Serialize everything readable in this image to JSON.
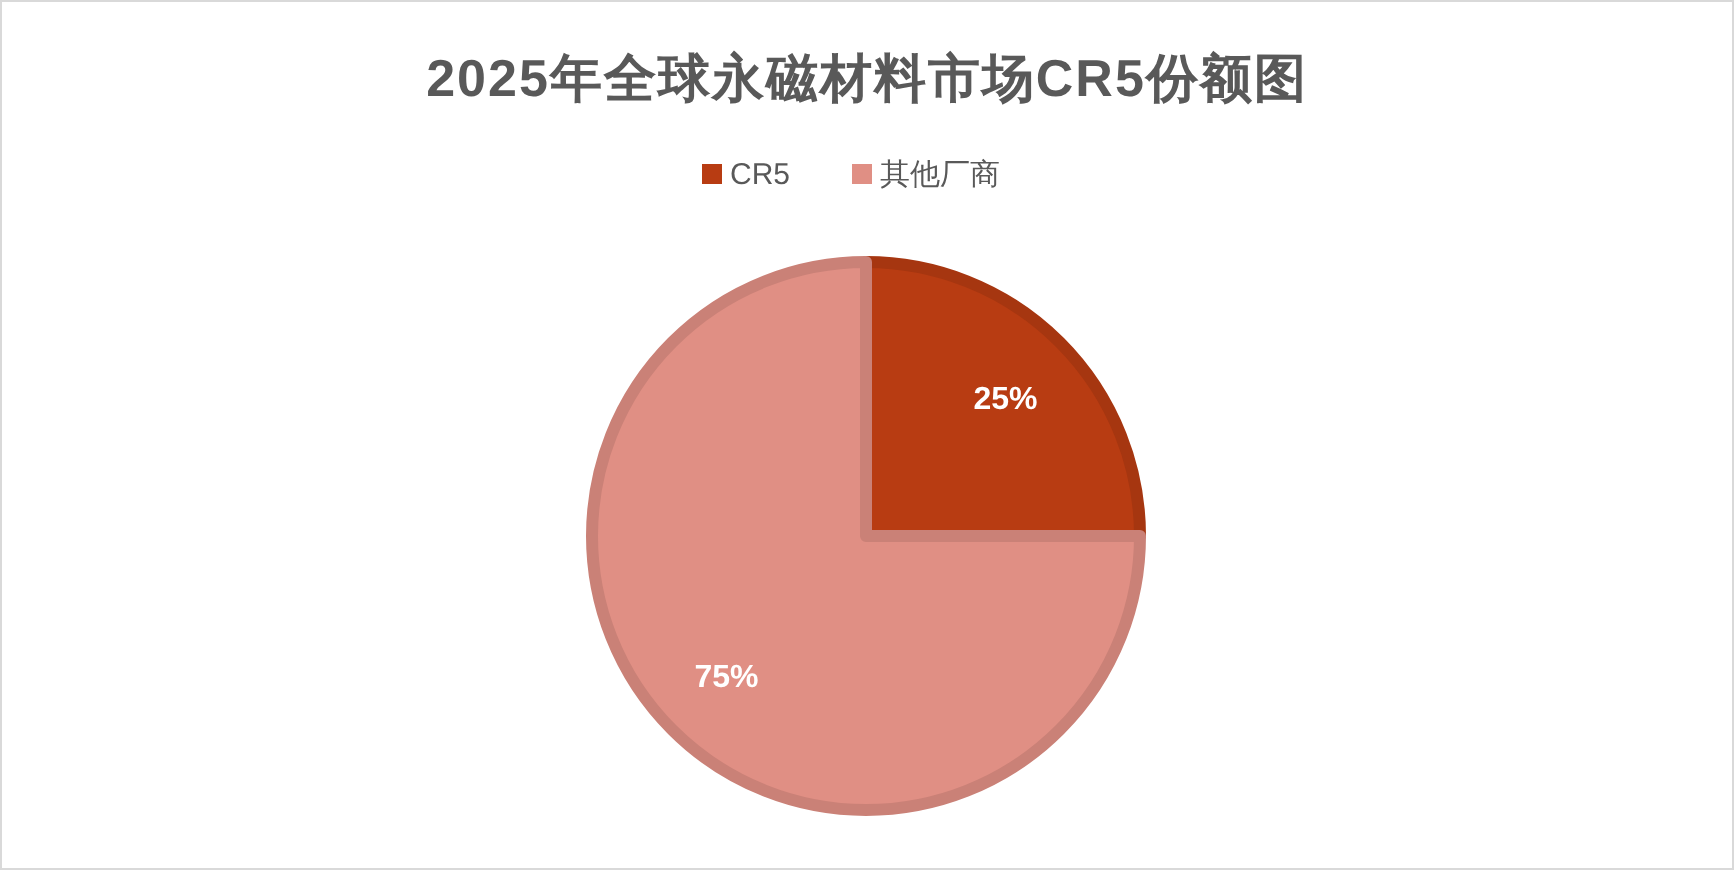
{
  "chart_data": {
    "type": "pie",
    "title": "2025年全球永磁材料市场CR5份额图",
    "categories": [
      "CR5",
      "其他厂商"
    ],
    "values": [
      25,
      75
    ],
    "value_labels": [
      "25%",
      "75%"
    ],
    "colors": [
      "#b83c12",
      "#e08f84"
    ],
    "legend": "top"
  }
}
